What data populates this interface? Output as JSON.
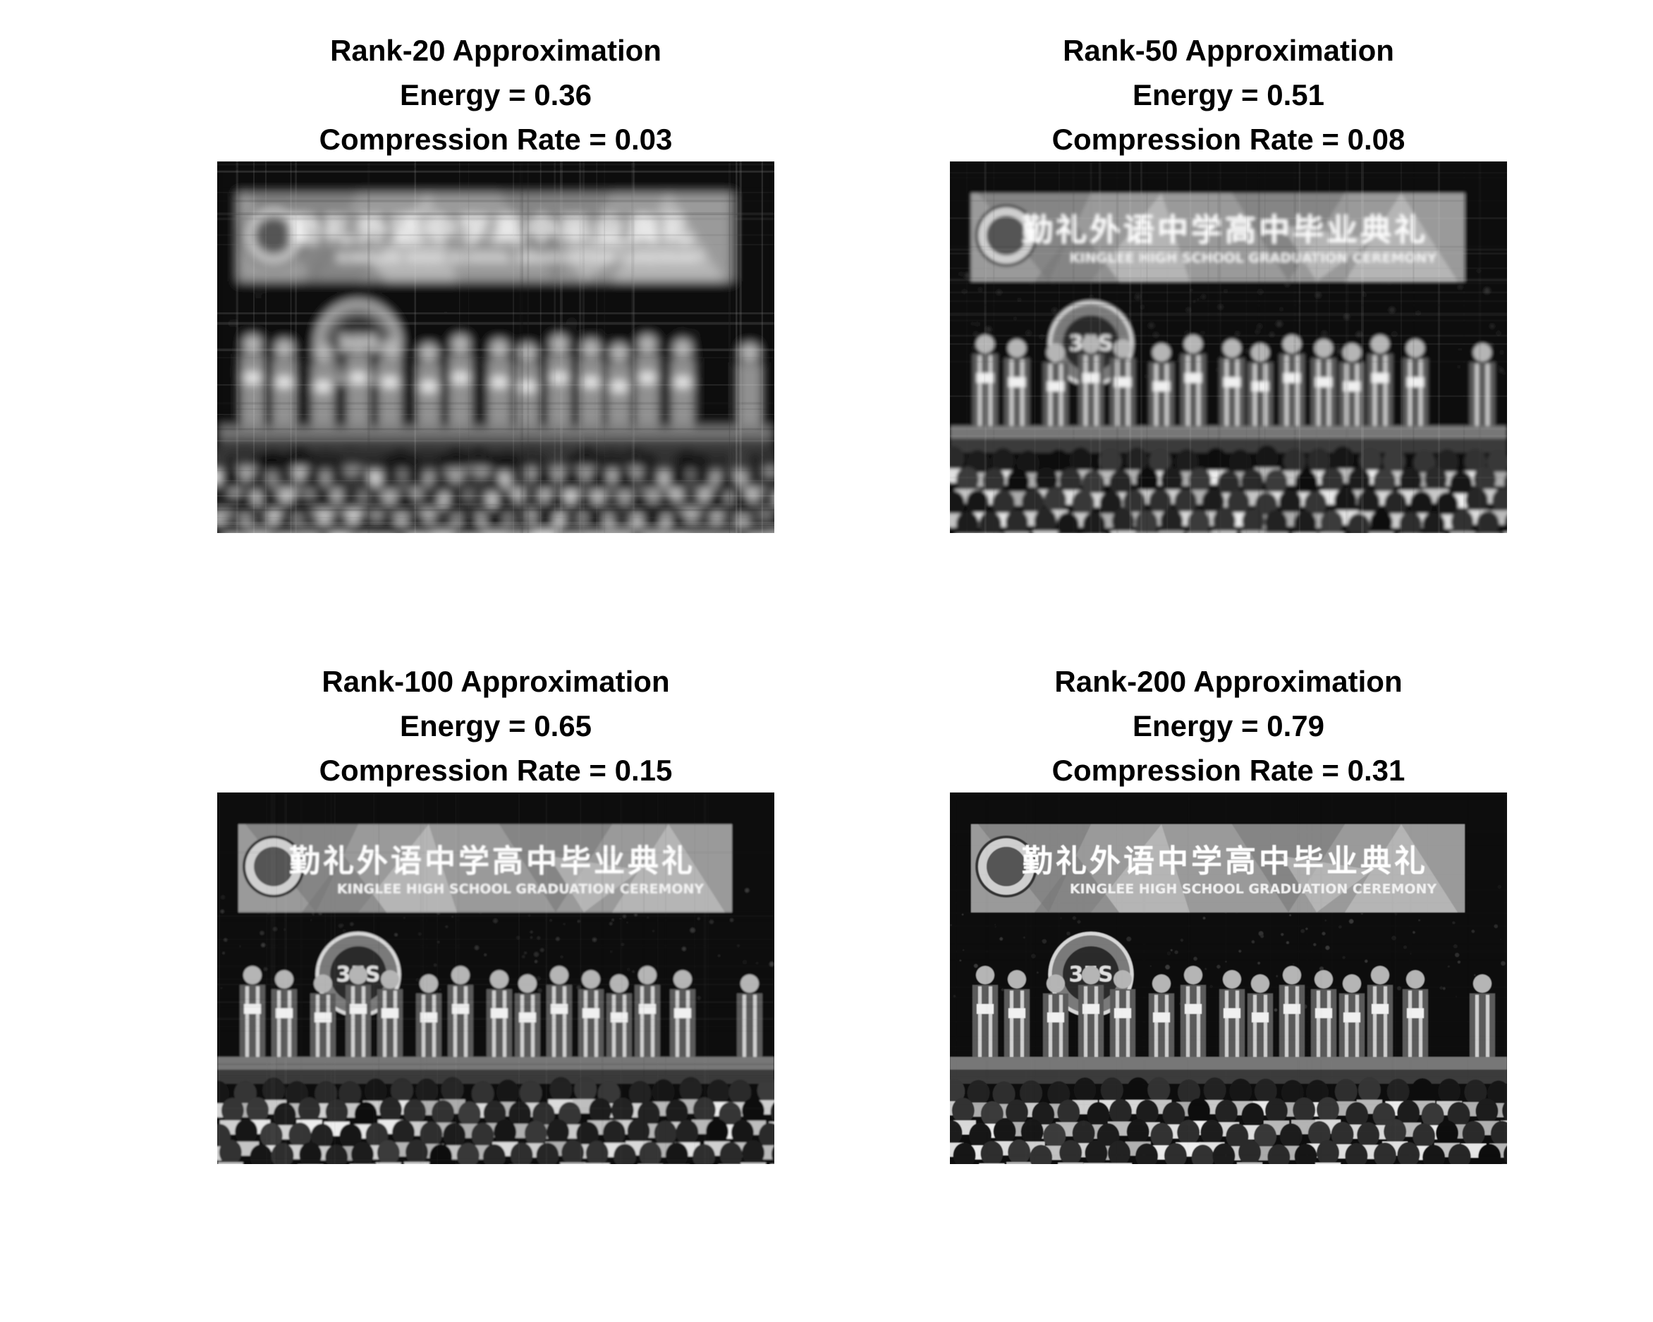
{
  "panels": [
    {
      "title": "Rank-20 Approximation",
      "energy": "Energy = 0.36",
      "compression": "Compression Rate = 0.03",
      "banner_cn": "勤礼外语中学高中毕业典礼",
      "banner_en": "KINGLEE HIGH SCHOOL GRADUATION CEREMONY",
      "blur": 7,
      "noise": 0.55
    },
    {
      "title": "Rank-50 Approximation",
      "energy": "Energy = 0.51",
      "compression": "Compression Rate = 0.08",
      "banner_cn": "勤礼外语中学高中毕业典礼",
      "banner_en": "KINGLEE HIGH SCHOOL GRADUATION CEREMONY",
      "blur": 2.5,
      "noise": 0.35
    },
    {
      "title": "Rank-100 Approximation",
      "energy": "Energy = 0.65",
      "compression": "Compression Rate = 0.15",
      "banner_cn": "勤礼外语中学高中毕业典礼",
      "banner_en": "KINGLEE HIGH SCHOOL GRADUATION CEREMONY",
      "blur": 1,
      "noise": 0.15
    },
    {
      "title": "Rank-200 Approximation",
      "energy": "Energy = 0.79",
      "compression": "Compression Rate = 0.31",
      "banner_cn": "勤礼外语中学高中毕业典礼",
      "banner_en": "KINGLEE HIGH SCHOOL GRADUATION CEREMONY",
      "blur": 0.4,
      "noise": 0.05
    }
  ]
}
